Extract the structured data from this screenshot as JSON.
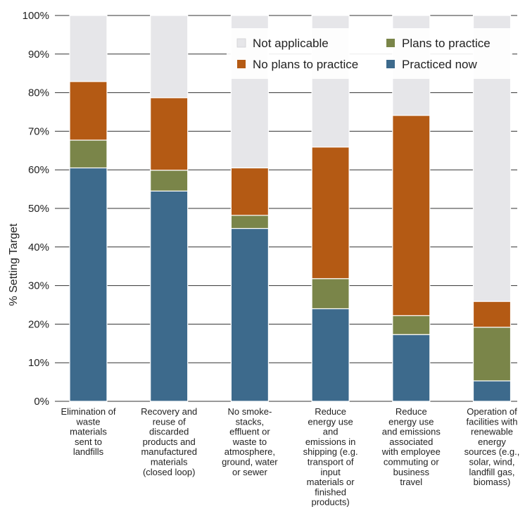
{
  "chart_data": {
    "type": "bar",
    "stacked": true,
    "ylabel": "% Setting  Target",
    "ylim": [
      0,
      100
    ],
    "yticks": [
      "0%",
      "10%",
      "20%",
      "30%",
      "40%",
      "50%",
      "60%",
      "70%",
      "80%",
      "90%",
      "100%"
    ],
    "grid": true,
    "legend_position": "top-right",
    "categories": [
      [
        "Elimination of",
        "waste",
        "materials",
        "sent to",
        "landfills"
      ],
      [
        "Recovery and",
        "reuse of",
        "discarded",
        "products and",
        "manufactured",
        "materials",
        "(closed loop)"
      ],
      [
        "No smoke-",
        "stacks,",
        "effluent or",
        "waste to",
        "atmosphere,",
        "ground, water",
        "or sewer"
      ],
      [
        "Reduce",
        "energy use",
        "and",
        "emissions in",
        "shipping (e.g.",
        "transport of",
        "input",
        "materials or",
        "finished",
        "products)"
      ],
      [
        "Reduce",
        "energy use",
        "and emissions",
        "associated",
        "with employee",
        "commuting or",
        "business",
        "travel"
      ],
      [
        "Operation of",
        "facilities with",
        "renewable",
        "energy",
        "sources (e.g.,",
        "solar, wind,",
        "landfill gas,",
        "biomass)"
      ]
    ],
    "series": [
      {
        "name": "Practiced now",
        "color": "#3d6a8c",
        "values": [
          60.5,
          54.5,
          44.8,
          24.0,
          17.3,
          5.3
        ]
      },
      {
        "name": "Plans to practice",
        "color": "#7a8549",
        "values": [
          7.2,
          5.4,
          3.4,
          7.8,
          4.9,
          13.9
        ]
      },
      {
        "name": "No plans to practice",
        "color": "#b45a14",
        "values": [
          15.2,
          18.8,
          12.3,
          34.1,
          51.9,
          6.7
        ]
      },
      {
        "name": "Not applicable",
        "color": "#e6e6e9",
        "values": [
          17.1,
          21.3,
          39.5,
          34.1,
          25.9,
          74.1
        ]
      }
    ],
    "legend_order": [
      "Not applicable",
      "Plans to practice",
      "No plans to practice",
      "Practiced now"
    ]
  }
}
